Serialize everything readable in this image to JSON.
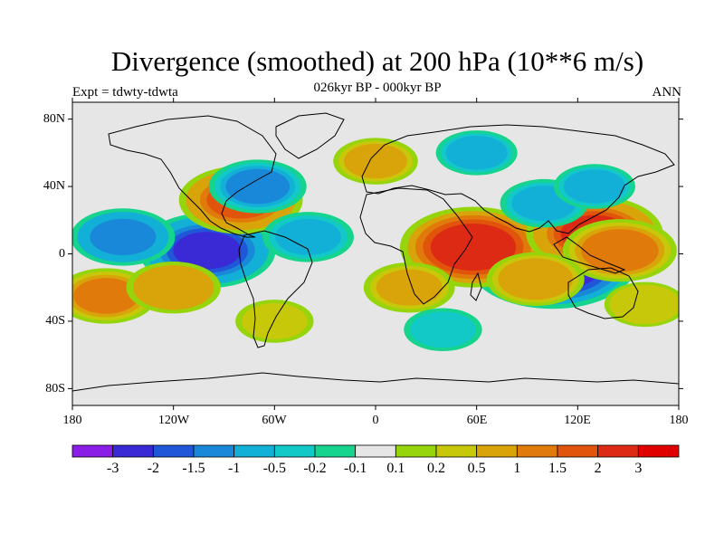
{
  "header": {
    "title": "Divergence (smoothed) at 200 hPa (10**6 m/s)",
    "subtitle": "026kyr BP - 000kyr BP",
    "left_label": "Expt = tdwty-tdwta",
    "right_label": "ANN"
  },
  "map": {
    "y_ticks": [
      "80N",
      "40N",
      "0",
      "40S",
      "80S"
    ],
    "x_ticks": [
      "180",
      "120W",
      "60W",
      "0",
      "60E",
      "120E",
      "180"
    ]
  },
  "colorbar": {
    "labels": [
      "-3",
      "-2",
      "-1.5",
      "-1",
      "-0.5",
      "-0.2",
      "-0.1",
      "0.1",
      "0.2",
      "0.5",
      "1",
      "1.5",
      "2",
      "3"
    ],
    "colors": [
      "#8a1ee6",
      "#3a2ad6",
      "#1f57d8",
      "#1a88d8",
      "#12b0d6",
      "#12c9c8",
      "#16d48e",
      "#e6e6e6",
      "#96d40c",
      "#c8c80a",
      "#d8a40a",
      "#e07a0a",
      "#e0540c",
      "#dc2a14",
      "#e00000"
    ]
  },
  "chart_data": {
    "type": "heatmap",
    "title": "Divergence (smoothed) at 200 hPa (10**6 m/s)",
    "subtitle": "026kyr BP - 000kyr BP",
    "experiment": "Expt = tdwty-tdwta",
    "season": "ANN",
    "x_range_deg": [
      -180,
      180
    ],
    "y_range_deg": [
      -90,
      90
    ],
    "contour_levels": [
      -3,
      -2,
      -1.5,
      -1,
      -0.5,
      -0.2,
      -0.1,
      0.1,
      0.2,
      0.5,
      1,
      1.5,
      2,
      3
    ],
    "features": [
      {
        "lon": 105,
        "lat": -5,
        "value": -3.2
      },
      {
        "lon": -100,
        "lat": 2,
        "value": -2.2
      },
      {
        "lon": 58,
        "lat": 4,
        "value": 2.5
      },
      {
        "lon": 130,
        "lat": 12,
        "value": 2.2
      },
      {
        "lon": -80,
        "lat": 32,
        "value": 1.8
      },
      {
        "lon": 145,
        "lat": 2,
        "value": 1.5
      },
      {
        "lon": -150,
        "lat": 10,
        "value": -1.2
      },
      {
        "lon": -70,
        "lat": 40,
        "value": -1.0
      },
      {
        "lon": 95,
        "lat": -15,
        "value": 1.0
      },
      {
        "lon": 20,
        "lat": -20,
        "value": 0.8
      },
      {
        "lon": -160,
        "lat": -25,
        "value": 1.1
      },
      {
        "lon": -40,
        "lat": 10,
        "value": -0.8
      },
      {
        "lon": 100,
        "lat": 30,
        "value": -0.7
      },
      {
        "lon": 0,
        "lat": 55,
        "value": 0.6
      },
      {
        "lon": 130,
        "lat": 40,
        "value": -0.5
      },
      {
        "lon": -120,
        "lat": -20,
        "value": 0.9
      },
      {
        "lon": 40,
        "lat": -45,
        "value": -0.4
      },
      {
        "lon": -60,
        "lat": -40,
        "value": 0.4
      },
      {
        "lon": 60,
        "lat": 60,
        "value": -0.5
      },
      {
        "lon": 160,
        "lat": -30,
        "value": 0.5
      }
    ]
  }
}
